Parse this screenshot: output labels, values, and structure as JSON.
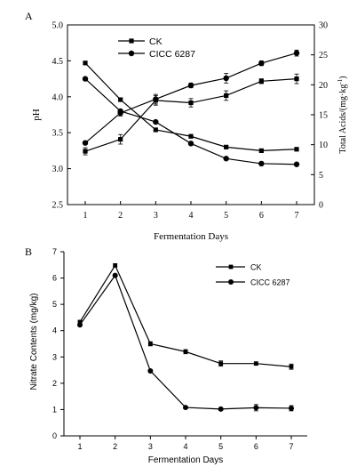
{
  "chart_data": [
    {
      "type": "line",
      "panel_label": "A",
      "xlabel": "Fermentation Days",
      "ylabel": "pH",
      "y2label_main": "Total Acids/(mg·kg",
      "y2label_sup": "-1",
      "y2label_end": ")",
      "x": [
        1,
        2,
        3,
        4,
        5,
        6,
        7
      ],
      "xticks": [
        "1",
        "2",
        "3",
        "4",
        "5",
        "6",
        "7"
      ],
      "ylim": [
        2.5,
        5.0
      ],
      "yticks": [
        "2.5",
        "3.0",
        "3.5",
        "4.0",
        "4.5",
        "5.0"
      ],
      "y2lim": [
        0,
        30
      ],
      "y2ticks": [
        "0",
        "5",
        "10",
        "15",
        "20",
        "25",
        "30"
      ],
      "legend_position": "top-left",
      "series": [
        {
          "name": "CK",
          "marker": "square",
          "axis": "left",
          "values": [
            4.47,
            3.96,
            3.54,
            3.45,
            3.3,
            3.25,
            3.27
          ]
        },
        {
          "name": "CICC 6287",
          "marker": "circle",
          "axis": "left",
          "values": [
            4.25,
            3.8,
            3.65,
            3.35,
            3.14,
            3.07,
            3.06
          ]
        },
        {
          "name": "CK",
          "marker": "square",
          "axis": "right",
          "values": [
            8.9,
            10.9,
            17.4,
            17.0,
            18.2,
            20.6,
            21.0
          ],
          "errors": [
            0.6,
            0.8,
            0.8,
            0.7,
            0.8,
            0.4,
            0.8
          ]
        },
        {
          "name": "CICC 6287",
          "marker": "circle",
          "axis": "right",
          "values": [
            10.3,
            15.3,
            17.6,
            19.9,
            21.1,
            23.6,
            25.3
          ],
          "errors": [
            0.3,
            0.5,
            0.8,
            0.4,
            0.8,
            0.4,
            0.5
          ]
        }
      ]
    },
    {
      "type": "line",
      "panel_label": "B",
      "xlabel": "Fermentation Days",
      "ylabel": "Nitrate Contents (mg/kg)",
      "x": [
        1,
        2,
        3,
        4,
        5,
        6,
        7
      ],
      "xticks": [
        "1",
        "2",
        "3",
        "4",
        "5",
        "6",
        "7"
      ],
      "ylim": [
        0,
        7
      ],
      "yticks": [
        "0",
        "1",
        "2",
        "3",
        "4",
        "5",
        "6",
        "7"
      ],
      "legend_position": "top-right",
      "series": [
        {
          "name": "CK",
          "marker": "square",
          "values": [
            4.33,
            6.48,
            3.5,
            3.2,
            2.75,
            2.75,
            2.63
          ],
          "errors": [
            0.05,
            0.06,
            0.08,
            0.08,
            0.1,
            0.06,
            0.1
          ]
        },
        {
          "name": "CICC 6287",
          "marker": "circle",
          "values": [
            4.22,
            6.1,
            2.47,
            1.08,
            1.02,
            1.07,
            1.05
          ],
          "errors": [
            0.04,
            0.05,
            0.04,
            0.04,
            0.05,
            0.12,
            0.1
          ]
        }
      ]
    }
  ]
}
